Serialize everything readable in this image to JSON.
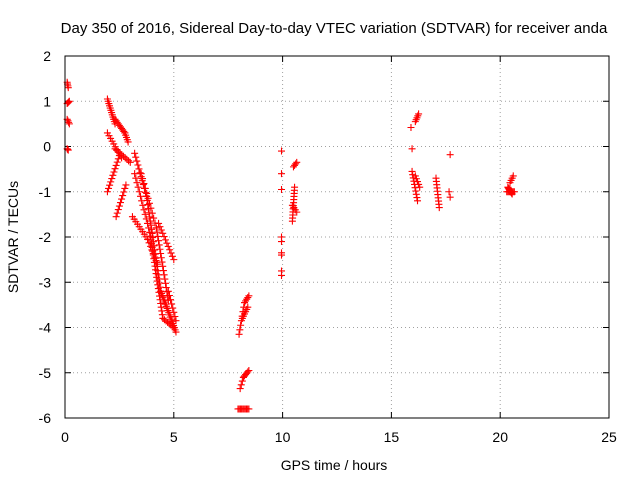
{
  "chart_data": {
    "type": "scatter",
    "title": "Day 350 of 2016, Sidereal Day-to-day VTEC variation (SDTVAR) for receiver anda",
    "xlabel": "GPS time / hours",
    "ylabel": "SDTVAR / TECUs",
    "xlim": [
      0,
      25
    ],
    "ylim": [
      -6,
      2
    ],
    "xticks": [
      0,
      5,
      10,
      15,
      20,
      25
    ],
    "yticks": [
      -6,
      -5,
      -4,
      -3,
      -2,
      -1,
      0,
      1,
      2
    ],
    "grid": true,
    "marker": "plus",
    "color": "#ff0000",
    "segments": [
      {
        "from": [
          0.1,
          1.42
        ],
        "to": [
          0.15,
          1.3
        ],
        "n": 4
      },
      {
        "from": [
          0.1,
          0.95
        ],
        "to": [
          0.2,
          1.0
        ],
        "n": 4
      },
      {
        "from": [
          0.1,
          0.6
        ],
        "to": [
          0.2,
          0.5
        ],
        "n": 4
      },
      {
        "from": [
          0.1,
          -0.05
        ],
        "to": [
          0.15,
          -0.08
        ],
        "n": 3
      },
      {
        "from": [
          1.95,
          1.05
        ],
        "to": [
          2.3,
          0.5
        ],
        "n": 12
      },
      {
        "from": [
          2.3,
          0.6
        ],
        "to": [
          2.75,
          0.3
        ],
        "n": 10
      },
      {
        "from": [
          2.75,
          0.3
        ],
        "to": [
          2.9,
          0.1
        ],
        "n": 5
      },
      {
        "from": [
          1.95,
          0.3
        ],
        "to": [
          2.6,
          -0.25
        ],
        "n": 10
      },
      {
        "from": [
          1.95,
          -1.0
        ],
        "to": [
          2.5,
          -0.2
        ],
        "n": 12
      },
      {
        "from": [
          2.35,
          -1.55
        ],
        "to": [
          2.8,
          -0.85
        ],
        "n": 10
      },
      {
        "from": [
          2.3,
          -0.05
        ],
        "to": [
          3.0,
          -0.35
        ],
        "n": 10
      },
      {
        "from": [
          3.2,
          -0.15
        ],
        "to": [
          3.75,
          -1.1
        ],
        "n": 12
      },
      {
        "from": [
          3.75,
          -1.1
        ],
        "to": [
          4.4,
          -3.2
        ],
        "n": 24
      },
      {
        "from": [
          4.4,
          -3.2
        ],
        "to": [
          5.1,
          -4.1
        ],
        "n": 20
      },
      {
        "from": [
          3.2,
          -0.6
        ],
        "to": [
          3.9,
          -1.9
        ],
        "n": 14
      },
      {
        "from": [
          3.9,
          -1.9
        ],
        "to": [
          4.5,
          -3.8
        ],
        "n": 24
      },
      {
        "from": [
          4.5,
          -3.8
        ],
        "to": [
          5.0,
          -4.0
        ],
        "n": 8
      },
      {
        "from": [
          3.5,
          -0.6
        ],
        "to": [
          4.2,
          -1.8
        ],
        "n": 12
      },
      {
        "from": [
          4.2,
          -1.8
        ],
        "to": [
          4.75,
          -3.4
        ],
        "n": 18
      },
      {
        "from": [
          3.1,
          -1.55
        ],
        "to": [
          3.8,
          -2.05
        ],
        "n": 10
      },
      {
        "from": [
          3.8,
          -2.05
        ],
        "to": [
          4.25,
          -2.6
        ],
        "n": 8
      },
      {
        "from": [
          4.3,
          -1.7
        ],
        "to": [
          5.0,
          -2.5
        ],
        "n": 12
      },
      {
        "from": [
          4.75,
          -3.2
        ],
        "to": [
          5.1,
          -3.85
        ],
        "n": 8
      },
      {
        "from": [
          8.0,
          -4.15
        ],
        "to": [
          8.25,
          -3.45
        ],
        "n": 8
      },
      {
        "from": [
          8.25,
          -3.45
        ],
        "to": [
          8.45,
          -3.3
        ],
        "n": 5
      },
      {
        "from": [
          8.15,
          -3.8
        ],
        "to": [
          8.4,
          -3.55
        ],
        "n": 6
      },
      {
        "from": [
          8.05,
          -5.35
        ],
        "to": [
          8.2,
          -5.1
        ],
        "n": 4
      },
      {
        "from": [
          8.2,
          -5.1
        ],
        "to": [
          8.45,
          -4.95
        ],
        "n": 6
      },
      {
        "from": [
          7.95,
          -5.8
        ],
        "to": [
          8.45,
          -5.8
        ],
        "n": 10
      },
      {
        "from": [
          9.95,
          -0.1
        ],
        "to": [
          9.95,
          -0.1
        ],
        "n": 1
      },
      {
        "from": [
          9.95,
          -0.6
        ],
        "to": [
          9.95,
          -0.6
        ],
        "n": 1
      },
      {
        "from": [
          9.95,
          -0.95
        ],
        "to": [
          9.95,
          -0.95
        ],
        "n": 1
      },
      {
        "from": [
          9.95,
          -2.0
        ],
        "to": [
          9.95,
          -2.1
        ],
        "n": 2
      },
      {
        "from": [
          9.95,
          -2.35
        ],
        "to": [
          9.95,
          -2.4
        ],
        "n": 2
      },
      {
        "from": [
          9.95,
          -2.75
        ],
        "to": [
          9.95,
          -2.85
        ],
        "n": 2
      },
      {
        "from": [
          10.45,
          -1.65
        ],
        "to": [
          10.55,
          -0.9
        ],
        "n": 12
      },
      {
        "from": [
          10.45,
          -1.3
        ],
        "to": [
          10.65,
          -1.45
        ],
        "n": 4
      },
      {
        "from": [
          10.5,
          -0.45
        ],
        "to": [
          10.65,
          -0.35
        ],
        "n": 4
      },
      {
        "from": [
          15.9,
          0.42
        ],
        "to": [
          15.9,
          0.42
        ],
        "n": 1
      },
      {
        "from": [
          16.1,
          0.55
        ],
        "to": [
          16.25,
          0.72
        ],
        "n": 5
      },
      {
        "from": [
          15.95,
          -0.05
        ],
        "to": [
          15.95,
          -0.05
        ],
        "n": 1
      },
      {
        "from": [
          15.95,
          -0.55
        ],
        "to": [
          16.2,
          -1.2
        ],
        "n": 10
      },
      {
        "from": [
          16.1,
          -0.65
        ],
        "to": [
          16.3,
          -0.9
        ],
        "n": 5
      },
      {
        "from": [
          17.05,
          -0.7
        ],
        "to": [
          17.2,
          -1.35
        ],
        "n": 10
      },
      {
        "from": [
          17.7,
          -0.18
        ],
        "to": [
          17.7,
          -0.18
        ],
        "n": 1
      },
      {
        "from": [
          17.65,
          -1.0
        ],
        "to": [
          17.7,
          -1.12
        ],
        "n": 2
      },
      {
        "from": [
          20.35,
          -0.9
        ],
        "to": [
          20.55,
          -1.05
        ],
        "n": 10
      },
      {
        "from": [
          20.45,
          -0.8
        ],
        "to": [
          20.6,
          -0.65
        ],
        "n": 4
      },
      {
        "from": [
          20.3,
          -1.0
        ],
        "to": [
          20.65,
          -1.0
        ],
        "n": 8
      }
    ]
  }
}
